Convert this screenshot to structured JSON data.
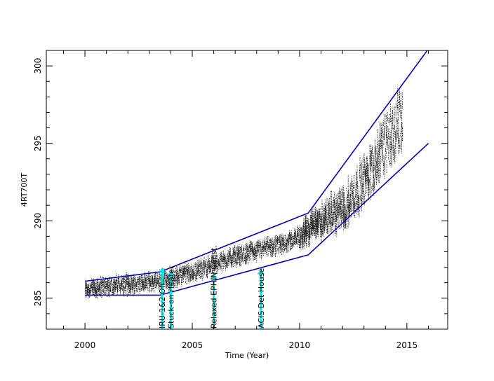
{
  "chart_data": {
    "type": "scatter",
    "title": "",
    "xlabel": "Time (Year)",
    "ylabel": "4RT700T",
    "xlim": [
      1998.2,
      2016.9
    ],
    "ylim": [
      283.0,
      301.0
    ],
    "xticks": [
      2000,
      2005,
      2010,
      2015
    ],
    "yticks": [
      285,
      290,
      295,
      300
    ],
    "grid": false,
    "colors": {
      "points": "#000000",
      "envelope": "#0000cc",
      "arrows": "#00e5e5"
    },
    "data_trend": [
      [
        2000.0,
        285.6
      ],
      [
        2001.0,
        285.8
      ],
      [
        2002.0,
        285.9
      ],
      [
        2003.0,
        286.0
      ],
      [
        2004.0,
        286.3
      ],
      [
        2005.0,
        286.7
      ],
      [
        2006.0,
        287.2
      ],
      [
        2007.0,
        287.7
      ],
      [
        2008.0,
        288.1
      ],
      [
        2009.0,
        288.4
      ],
      [
        2010.0,
        289.0
      ],
      [
        2010.5,
        289.6
      ],
      [
        2011.0,
        290.0
      ],
      [
        2011.5,
        290.4
      ],
      [
        2012.0,
        290.8
      ],
      [
        2012.5,
        291.6
      ],
      [
        2013.0,
        292.6
      ],
      [
        2013.5,
        293.8
      ],
      [
        2014.0,
        295.0
      ],
      [
        2014.5,
        296.0
      ],
      [
        2014.8,
        296.6
      ]
    ],
    "data_end": 2014.8,
    "envelope_upper": [
      [
        2000.0,
        286.1
      ],
      [
        2003.5,
        286.7
      ],
      [
        2010.4,
        290.5
      ],
      [
        2016.0,
        301.1
      ]
    ],
    "envelope_lower": [
      [
        2000.0,
        285.2
      ],
      [
        2003.5,
        285.2
      ],
      [
        2010.4,
        287.8
      ],
      [
        2016.0,
        295.0
      ]
    ],
    "annotations": [
      {
        "text": "IRU-1&2 Off",
        "x": 2003.6,
        "arrow_top": 287.0
      },
      {
        "text": "Stuck-on Heater",
        "x": 2004.0,
        "arrow_top": 286.8
      },
      {
        "text": "Relaxed EPHIN Const.",
        "x": 2006.0,
        "arrow_top": 286.6
      },
      {
        "text": "ACIS Det House",
        "x": 2008.2,
        "arrow_top": 286.9
      }
    ]
  }
}
